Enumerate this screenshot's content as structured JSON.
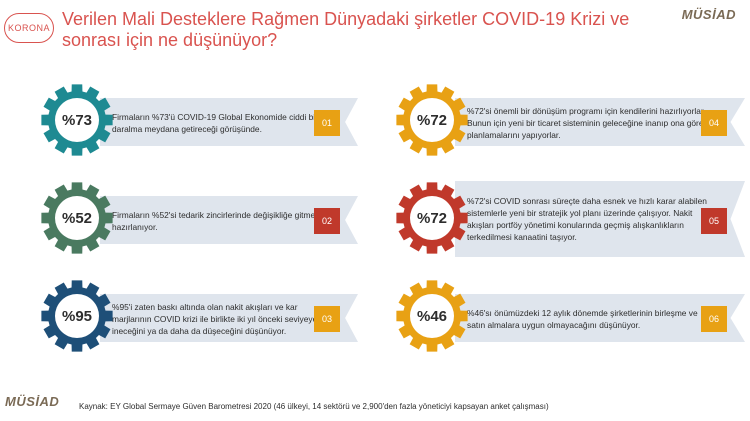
{
  "header": {
    "badge": "KORONA",
    "title": "Verilen Mali Desteklere Rağmen Dünyadaki şirketler COVID-19 Krizi ve sonrası için ne düşünüyor?",
    "logo": "MÜSİAD"
  },
  "colors": {
    "gear_teal": "#1e8a92",
    "gear_green": "#4a7a60",
    "gear_navy": "#1e4f78",
    "gear_orange": "#e8a114",
    "gear_red": "#c0392b",
    "num_orange": "#e8a114",
    "num_red": "#c0392b"
  },
  "items": [
    {
      "percent": "%73",
      "number": "01",
      "text": "Firmaların %73'ü COVID-19 Global Ekonomide ciddi bir daralma meydana getireceği görüşünde."
    },
    {
      "percent": "%52",
      "number": "02",
      "text": "Firmaların %52'si tedarik zincirlerinde değişikliğe gitmeye hazırlanıyor."
    },
    {
      "percent": "%95",
      "number": "03",
      "text": "%95'i zaten baskı altında olan nakit akışları ve kar marjlarının COVID krizi ile birlikte iki yıl önceki seviyeye ineceğini ya da daha da düşeceğini düşünüyor."
    },
    {
      "percent": "%72",
      "number": "04",
      "text": "%72'si önemli bir dönüşüm programı için kendilerini hazırlıyorlar. Bunun için yeni bir ticaret sisteminin geleceğine inanıp ona göre planlamalarını yapıyorlar."
    },
    {
      "percent": "%72",
      "number": "05",
      "text": "%72'si COVID sonrası süreçte daha esnek ve hızlı karar alabilen sistemlerle yeni bir stratejik yol planı üzerinde çalışıyor. Nakit akışları portföy yönetimi konularında geçmiş alışkanlıkların terkedilmesi kanaatini taşıyor."
    },
    {
      "percent": "%46",
      "number": "06",
      "text": "%46'sı önümüzdeki 12 aylık dönemde şirketlerinin birleşme ve satın almalara uygun olmayacağını düşünüyor."
    }
  ],
  "footer": {
    "logo": "MÜSİAD",
    "source": "Kaynak: EY Global Sermaye Güven Barometresi 2020 (46 ülkeyi, 14 sektörü ve 2,900'den fazla yöneticiyi kapsayan anket çalışması)"
  }
}
